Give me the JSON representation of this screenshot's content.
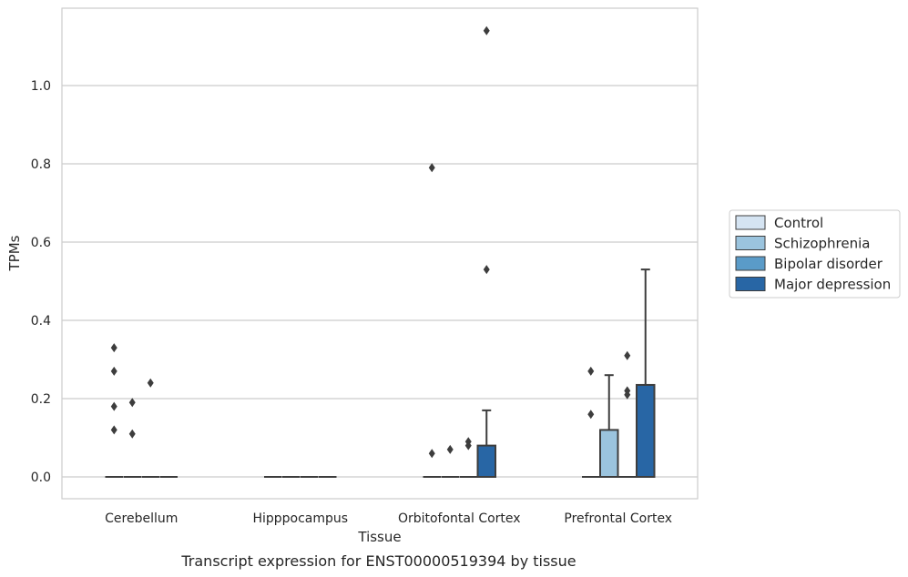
{
  "caption": "Transcript expression for ENST00000519394 by tissue",
  "chart_data": {
    "type": "box",
    "title": "",
    "xlabel": "Tissue",
    "ylabel": "TPMs",
    "ylim": [
      -0.055,
      1.2
    ],
    "yticks": [
      "0.0",
      "0.2",
      "0.4",
      "0.6",
      "0.8",
      "1.0"
    ],
    "grid": "horizontal",
    "legend_position": "right",
    "categories": [
      "Cerebellum",
      "Hipppocampus",
      "Orbitofontal Cortex",
      "Prefrontal Cortex"
    ],
    "series": [
      {
        "name": "Control",
        "color": "#d5e4f2",
        "boxes": [
          {
            "q1": 0,
            "median": 0,
            "q3": 0,
            "whisker_low": 0,
            "whisker_high": 0,
            "outliers": [
              0.33,
              0.27,
              0.18,
              0.12
            ]
          },
          {
            "q1": 0,
            "median": 0,
            "q3": 0,
            "whisker_low": 0,
            "whisker_high": 0,
            "outliers": []
          },
          {
            "q1": 0,
            "median": 0,
            "q3": 0,
            "whisker_low": 0,
            "whisker_high": 0,
            "outliers": [
              0.79,
              0.06
            ]
          },
          {
            "q1": 0,
            "median": 0,
            "q3": 0,
            "whisker_low": 0,
            "whisker_high": 0,
            "outliers": [
              0.27,
              0.16
            ]
          }
        ]
      },
      {
        "name": "Schizophrenia",
        "color": "#9bc4de",
        "boxes": [
          {
            "q1": 0,
            "median": 0,
            "q3": 0,
            "whisker_low": 0,
            "whisker_high": 0,
            "outliers": [
              0.19,
              0.11
            ]
          },
          {
            "q1": 0,
            "median": 0,
            "q3": 0,
            "whisker_low": 0,
            "whisker_high": 0,
            "outliers": []
          },
          {
            "q1": 0,
            "median": 0,
            "q3": 0,
            "whisker_low": 0,
            "whisker_high": 0,
            "outliers": [
              0.07
            ]
          },
          {
            "q1": 0,
            "median": 0,
            "q3": 0.12,
            "whisker_low": 0,
            "whisker_high": 0.26,
            "outliers": []
          }
        ]
      },
      {
        "name": "Bipolar disorder",
        "color": "#5a9bc8",
        "boxes": [
          {
            "q1": 0,
            "median": 0,
            "q3": 0,
            "whisker_low": 0,
            "whisker_high": 0,
            "outliers": [
              0.24
            ]
          },
          {
            "q1": 0,
            "median": 0,
            "q3": 0,
            "whisker_low": 0,
            "whisker_high": 0,
            "outliers": []
          },
          {
            "q1": 0,
            "median": 0,
            "q3": 0,
            "whisker_low": 0,
            "whisker_high": 0,
            "outliers": [
              0.09,
              0.08
            ]
          },
          {
            "q1": 0,
            "median": 0,
            "q3": 0,
            "whisker_low": 0,
            "whisker_high": 0,
            "outliers": [
              0.31,
              0.22,
              0.21
            ]
          }
        ]
      },
      {
        "name": "Major depression",
        "color": "#2866a5",
        "boxes": [
          {
            "q1": 0,
            "median": 0,
            "q3": 0,
            "whisker_low": 0,
            "whisker_high": 0,
            "outliers": []
          },
          {
            "q1": 0,
            "median": 0,
            "q3": 0,
            "whisker_low": 0,
            "whisker_high": 0,
            "outliers": []
          },
          {
            "q1": 0,
            "median": 0,
            "q3": 0.08,
            "whisker_low": 0,
            "whisker_high": 0.17,
            "outliers": [
              1.14,
              0.53
            ]
          },
          {
            "q1": 0,
            "median": 0,
            "q3": 0.235,
            "whisker_low": 0,
            "whisker_high": 0.53,
            "outliers": []
          }
        ]
      }
    ]
  }
}
